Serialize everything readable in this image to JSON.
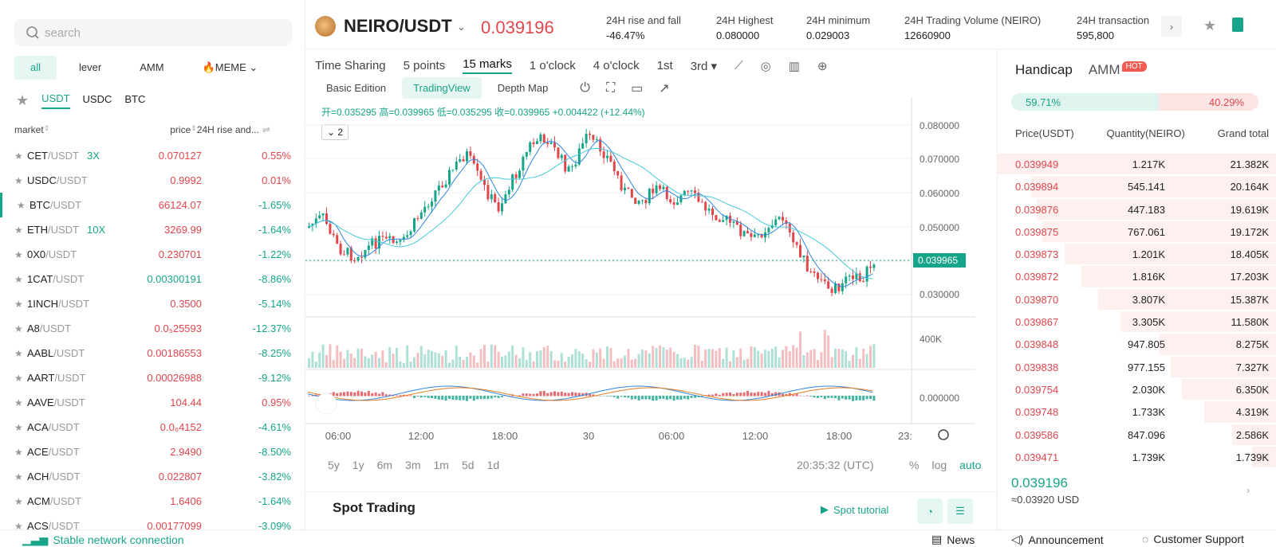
{
  "search": {
    "placeholder": "search"
  },
  "category_tabs": [
    "all",
    "lever",
    "AMM",
    "🔥MEME"
  ],
  "quote_tabs": [
    "USDT",
    "USDC",
    "BTC"
  ],
  "list_head": {
    "market": "market",
    "price": "price",
    "change": "24H rise and..."
  },
  "markets": [
    {
      "base": "CET",
      "quote": "/USDT",
      "lev": "3X",
      "price": "0.070127",
      "chg": "0.55%",
      "up": true
    },
    {
      "base": "USDC",
      "quote": "/USDT",
      "lev": "",
      "price": "0.9992",
      "chg": "0.01%",
      "up": true
    },
    {
      "base": "BTC",
      "quote": "/USDT",
      "lev": "",
      "price": "66124.07",
      "chg": "-1.65%",
      "up": false
    },
    {
      "base": "ETH",
      "quote": "/USDT",
      "lev": "10X",
      "price": "3269.99",
      "chg": "-1.64%",
      "up": false
    },
    {
      "base": "0X0",
      "quote": "/USDT",
      "lev": "",
      "price": "0.230701",
      "chg": "-1.22%",
      "up": false
    },
    {
      "base": "1CAT",
      "quote": "/USDT",
      "lev": "",
      "price": "0.00300191",
      "chg": "-8.86%",
      "up": false,
      "pgreen": true
    },
    {
      "base": "1INCH",
      "quote": "/USDT",
      "lev": "",
      "price": "0.3500",
      "chg": "-5.14%",
      "up": false
    },
    {
      "base": "A8",
      "quote": "/USDT",
      "lev": "",
      "price": "0.0₅25593",
      "chg": "-12.37%",
      "up": false
    },
    {
      "base": "AABL",
      "quote": "/USDT",
      "lev": "",
      "price": "0.00186553",
      "chg": "-8.25%",
      "up": false
    },
    {
      "base": "AART",
      "quote": "/USDT",
      "lev": "",
      "price": "0.00026988",
      "chg": "-9.12%",
      "up": false
    },
    {
      "base": "AAVE",
      "quote": "/USDT",
      "lev": "",
      "price": "104.44",
      "chg": "0.95%",
      "up": true
    },
    {
      "base": "ACA",
      "quote": "/USDT",
      "lev": "",
      "price": "0.0₆4152",
      "chg": "-4.61%",
      "up": false
    },
    {
      "base": "ACE",
      "quote": "/USDT",
      "lev": "",
      "price": "2.9490",
      "chg": "-8.50%",
      "up": false
    },
    {
      "base": "ACH",
      "quote": "/USDT",
      "lev": "",
      "price": "0.022807",
      "chg": "-3.82%",
      "up": false
    },
    {
      "base": "ACM",
      "quote": "/USDT",
      "lev": "",
      "price": "1.6406",
      "chg": "-1.64%",
      "up": false
    },
    {
      "base": "ACS",
      "quote": "/USDT",
      "lev": "",
      "price": "0.00177099",
      "chg": "-3.09%",
      "up": false
    }
  ],
  "header": {
    "pair": "NEIRO/USDT",
    "price": "0.039196",
    "stats": [
      {
        "label": "24H rise and fall",
        "value": "-46.47%"
      },
      {
        "label": "24H Highest",
        "value": "0.080000"
      },
      {
        "label": "24H minimum",
        "value": "0.029003"
      },
      {
        "label": "24H Trading Volume (NEIRO)",
        "value": "12660900"
      },
      {
        "label": "24H transaction",
        "value": "595,800"
      }
    ]
  },
  "time_tabs": [
    "Time Sharing",
    "5 points",
    "15 marks",
    "1 o'clock",
    "4 o'clock",
    "1st",
    "3rd ▾"
  ],
  "view_tabs": [
    "Basic Edition",
    "TradingView",
    "Depth Map"
  ],
  "ohlc": "开=0.035295 高=0.039965 低=0.035295 收=0.039965 +0.004422 (+12.44%)",
  "indicator_count": "2",
  "chart": {
    "price_ticks": [
      "0.080000",
      "0.070000",
      "0.060000",
      "0.050000",
      "0.030000"
    ],
    "current": "0.039965",
    "vol_tick": "400K",
    "macd_tick": "0.000000",
    "time_ticks": [
      "06:00",
      "12:00",
      "18:00",
      "30",
      "06:00",
      "12:00",
      "18:00",
      "23:"
    ]
  },
  "ranges": [
    "5y",
    "1y",
    "6m",
    "3m",
    "1m",
    "5d",
    "1d"
  ],
  "clock": "20:35:32 (UTC)",
  "scale_opts": [
    "%",
    "log",
    "auto"
  ],
  "spot": {
    "title": "Spot Trading",
    "tutorial": "Spot tutorial"
  },
  "right": {
    "tabs": [
      "Handicap",
      "AMM"
    ],
    "hot": "HOT",
    "buy_ratio": "59.71%",
    "sell_ratio": "40.29%",
    "book_head": [
      "Price(USDT)",
      "Quantity(NEIRO)",
      "Grand total"
    ],
    "asks": [
      {
        "p": "0.039949",
        "q": "1.217K",
        "t": "21.382K"
      },
      {
        "p": "0.039894",
        "q": "545.141",
        "t": "20.164K"
      },
      {
        "p": "0.039876",
        "q": "447.183",
        "t": "19.619K"
      },
      {
        "p": "0.039875",
        "q": "767.061",
        "t": "19.172K"
      },
      {
        "p": "0.039873",
        "q": "1.201K",
        "t": "18.405K"
      },
      {
        "p": "0.039872",
        "q": "1.816K",
        "t": "17.203K"
      },
      {
        "p": "0.039870",
        "q": "3.807K",
        "t": "15.387K"
      },
      {
        "p": "0.039867",
        "q": "3.305K",
        "t": "11.580K"
      },
      {
        "p": "0.039848",
        "q": "947.805",
        "t": "8.275K"
      },
      {
        "p": "0.039838",
        "q": "977.155",
        "t": "7.327K"
      },
      {
        "p": "0.039754",
        "q": "2.030K",
        "t": "6.350K"
      },
      {
        "p": "0.039748",
        "q": "1.733K",
        "t": "4.319K"
      },
      {
        "p": "0.039586",
        "q": "847.096",
        "t": "2.586K"
      },
      {
        "p": "0.039471",
        "q": "1.739K",
        "t": "1.739K"
      }
    ],
    "last": "0.039196",
    "usd": "≈0.03920 USD"
  },
  "footer": {
    "network": "Stable network connection",
    "news": "News",
    "announcement": "Announcement",
    "support": "Customer Support"
  },
  "colors": {
    "up": "#17a589",
    "down": "#e0464c",
    "ma1": "#2e86de",
    "ma2": "#48c9d6"
  }
}
